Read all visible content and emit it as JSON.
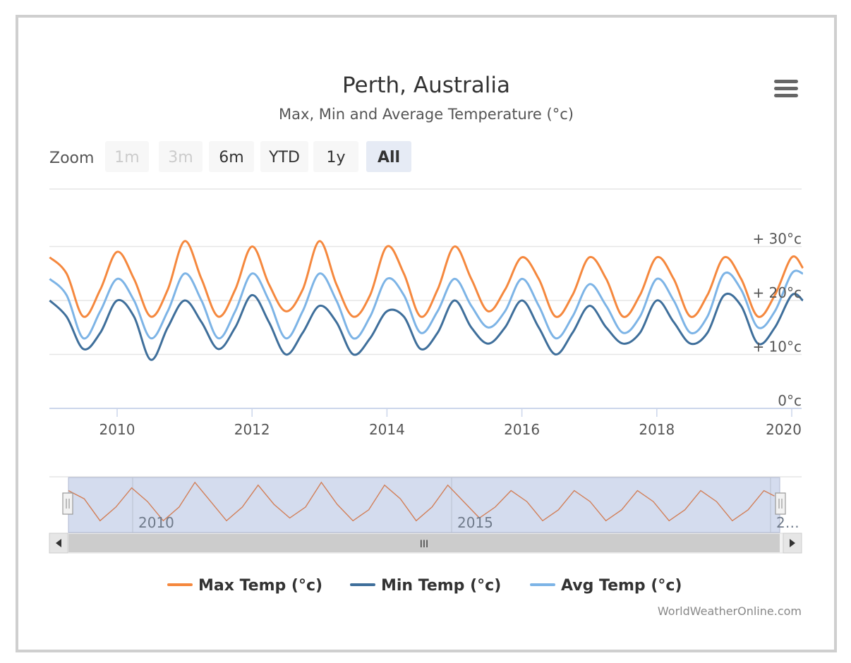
{
  "menu": {
    "icon": "hamburger-menu-icon"
  },
  "zoom": {
    "label": "Zoom",
    "buttons": [
      {
        "label": "1m",
        "state": "disabled"
      },
      {
        "label": "3m",
        "state": "disabled"
      },
      {
        "label": "6m",
        "state": "normal"
      },
      {
        "label": "YTD",
        "state": "normal"
      },
      {
        "label": "1y",
        "state": "normal"
      },
      {
        "label": "All",
        "state": "selected"
      }
    ]
  },
  "navigator": {
    "scrollbar_grip": "III",
    "left_arrow_icon": "arrow-left-icon",
    "right_arrow_icon": "arrow-right-icon",
    "handle_icon": "navigator-handle-icon",
    "x_ticks": [
      "2010",
      "2015",
      "2…"
    ]
  },
  "credits": "WorldWeatherOnline.com",
  "colors": {
    "max": "#f5883e",
    "min": "#3f6f9b",
    "avg": "#7db4e6",
    "navigator_mask": "#ccd6eb",
    "button_selected": "#e6ebf5"
  },
  "chart_data": {
    "type": "line",
    "title": "Perth, Australia",
    "subtitle": "Max, Min and Average Temperature (°c)",
    "xlabel": "",
    "ylabel": "",
    "x_ticks": [
      "2010",
      "2012",
      "2014",
      "2016",
      "2018",
      "2020"
    ],
    "y_ticks": [
      "0°c",
      "+ 10°c",
      "+ 20°c",
      "+ 30°c"
    ],
    "ylim": [
      0,
      30
    ],
    "grid": true,
    "legend_position": "bottom",
    "x": [
      "2009-01",
      "2009-04",
      "2009-07",
      "2009-10",
      "2010-01",
      "2010-04",
      "2010-07",
      "2010-10",
      "2011-01",
      "2011-04",
      "2011-07",
      "2011-10",
      "2012-01",
      "2012-04",
      "2012-07",
      "2012-10",
      "2013-01",
      "2013-04",
      "2013-07",
      "2013-10",
      "2014-01",
      "2014-04",
      "2014-07",
      "2014-10",
      "2015-01",
      "2015-04",
      "2015-07",
      "2015-10",
      "2016-01",
      "2016-04",
      "2016-07",
      "2016-10",
      "2017-01",
      "2017-04",
      "2017-07",
      "2017-10",
      "2018-01",
      "2018-04",
      "2018-07",
      "2018-10",
      "2019-01",
      "2019-04",
      "2019-07",
      "2019-10",
      "2020-01",
      "2020-03"
    ],
    "series": [
      {
        "name": "Max Temp (°c)",
        "values": [
          28,
          25,
          17,
          22,
          29,
          24,
          17,
          22,
          31,
          24,
          17,
          22,
          30,
          23,
          18,
          22,
          31,
          23,
          17,
          21,
          30,
          25,
          17,
          22,
          30,
          24,
          18,
          22,
          28,
          24,
          17,
          21,
          28,
          24,
          17,
          21,
          28,
          24,
          17,
          21,
          28,
          24,
          17,
          21,
          28,
          26
        ]
      },
      {
        "name": "Min Temp (°c)",
        "values": [
          20,
          17,
          11,
          14,
          20,
          17,
          9,
          15,
          20,
          16,
          11,
          15,
          21,
          16,
          10,
          14,
          19,
          16,
          10,
          13,
          18,
          17,
          11,
          14,
          20,
          15,
          12,
          15,
          20,
          15,
          10,
          14,
          19,
          15,
          12,
          14,
          20,
          16,
          12,
          14,
          21,
          19,
          12,
          15,
          21,
          20
        ]
      },
      {
        "name": "Avg Temp (°c)",
        "values": [
          24,
          21,
          13,
          18,
          24,
          20,
          13,
          18,
          25,
          20,
          13,
          18,
          25,
          20,
          13,
          18,
          25,
          20,
          13,
          17,
          24,
          21,
          14,
          18,
          24,
          19,
          15,
          18,
          24,
          19,
          13,
          17,
          23,
          19,
          14,
          17,
          24,
          20,
          14,
          17,
          25,
          22,
          15,
          18,
          25,
          25
        ]
      }
    ]
  }
}
